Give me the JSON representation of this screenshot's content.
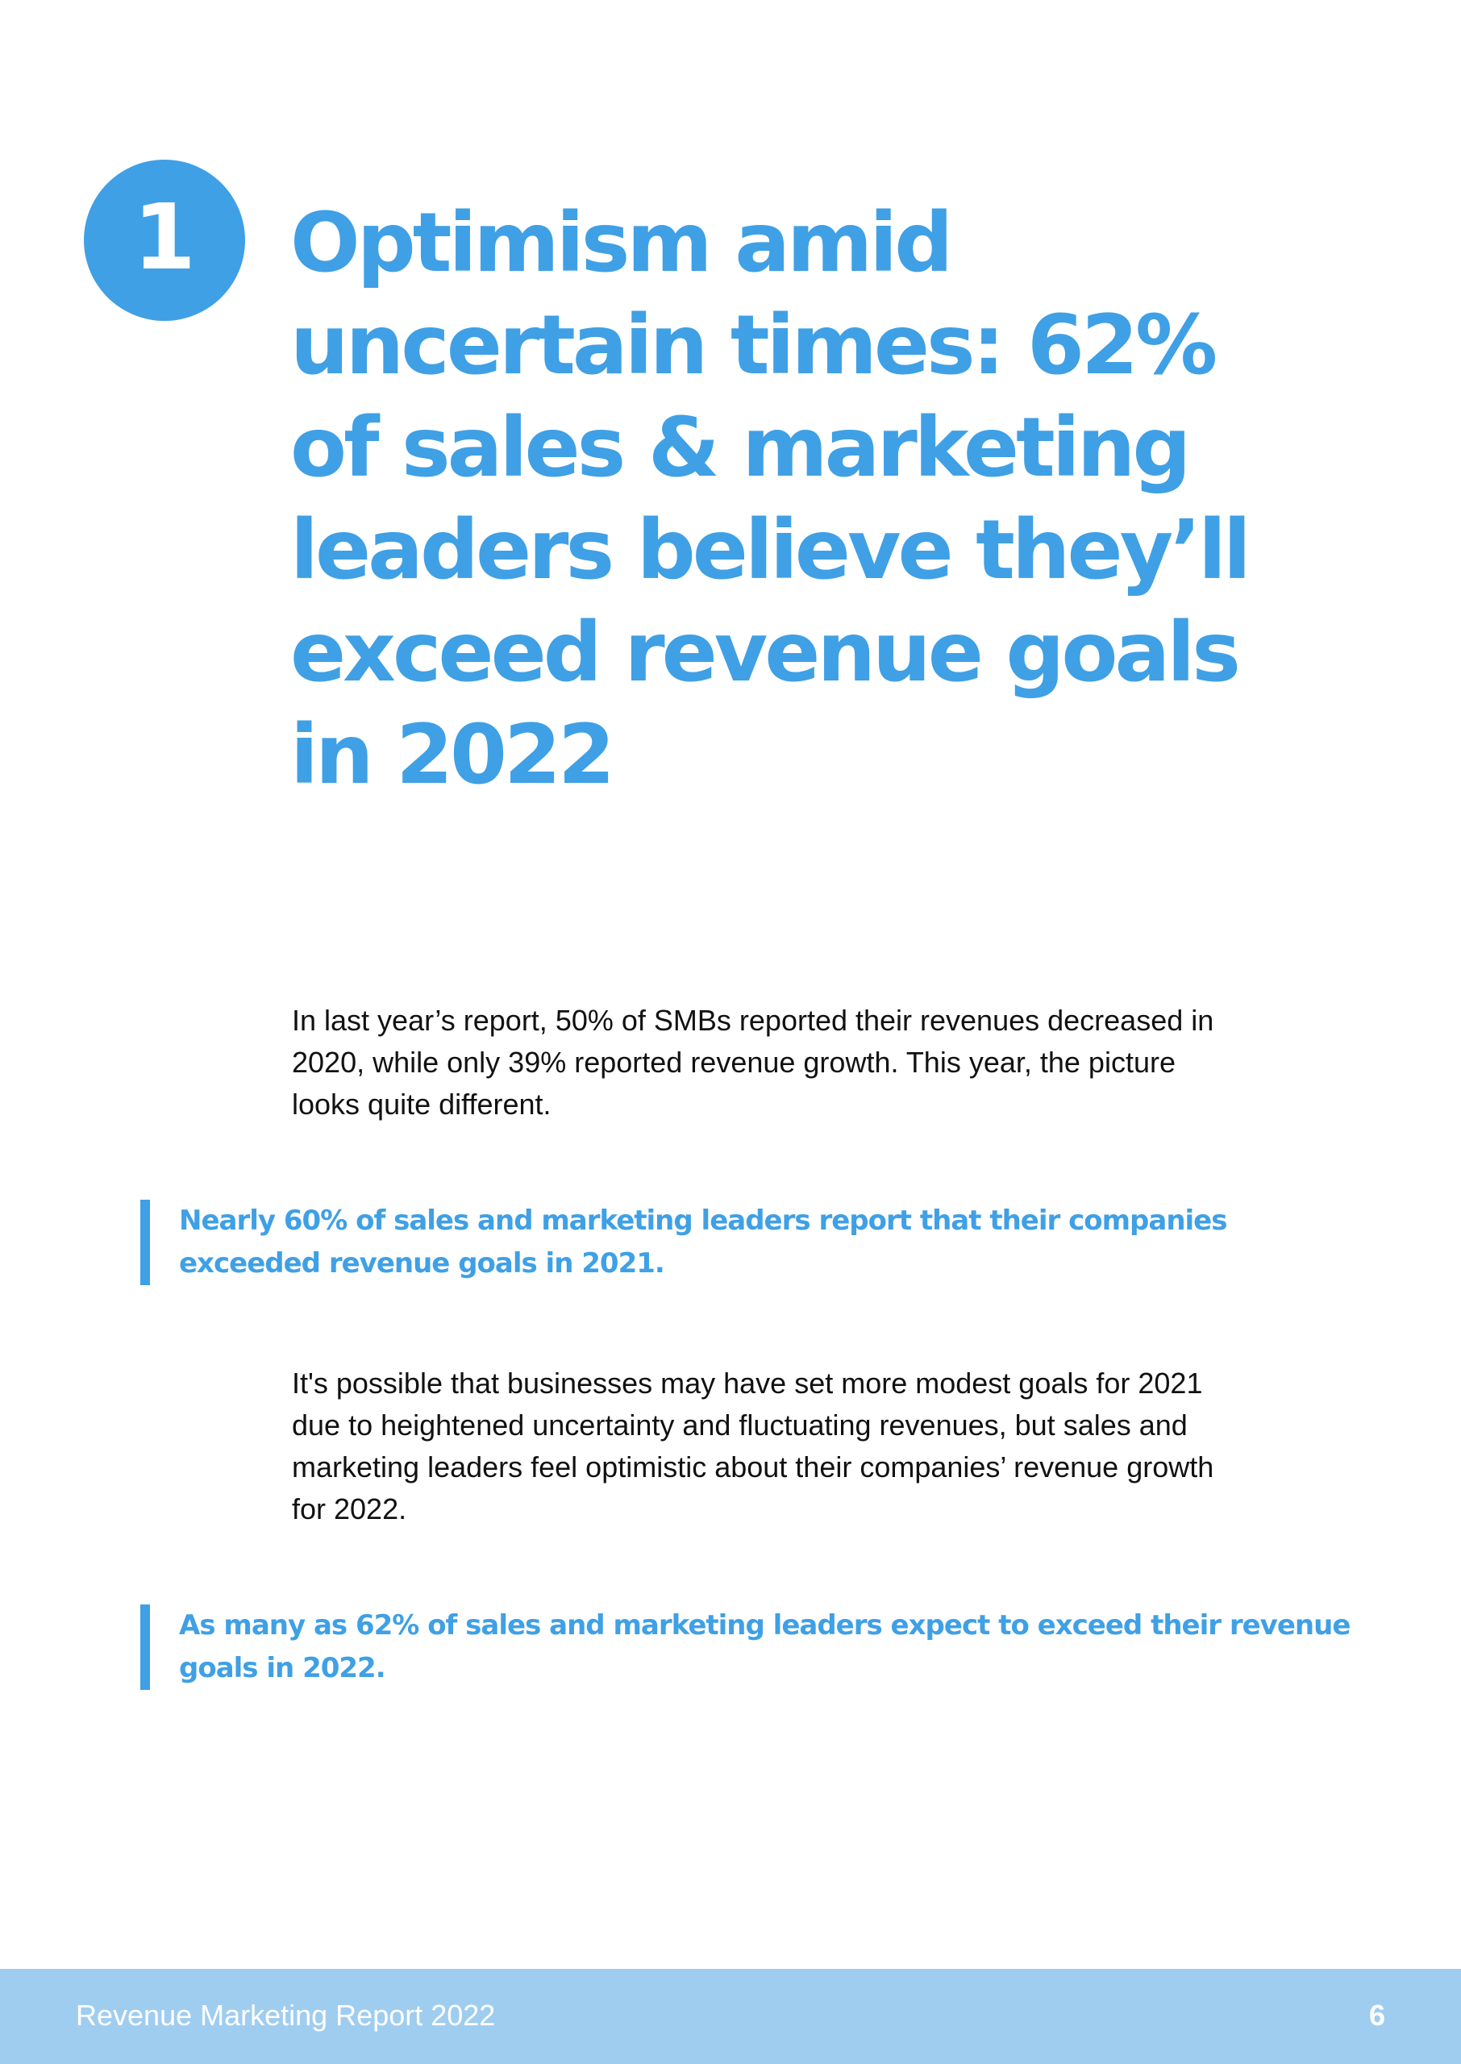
{
  "section": {
    "number": "1",
    "title": "Optimism amid uncertain times: 62% of sales & marketing leaders believe they’ll exceed revenue goals in 2022"
  },
  "paragraphs": {
    "intro": "In last year’s report, 50% of SMBs reported their revenues decreased in 2020, while only 39% reported revenue growth. This year, the picture looks quite different.",
    "middle": "It's possible that businesses may have set more modest goals for 2021 due to heightened uncertainty and fluctuating revenues, but sales and marketing leaders feel optimistic about their companies’ revenue growth for 2022."
  },
  "callouts": [
    "Nearly 60% of sales and marketing leaders report that their companies exceeded revenue goals in 2021.",
    "As many as 62% of sales and marketing leaders expect to exceed their revenue goals in 2022."
  ],
  "footer": {
    "title": "Revenue Marketing Report 2022",
    "page_number": "6"
  },
  "colors": {
    "accent": "#3fa0e5",
    "footer_background": "#9fcdf0",
    "body_text": "#111111"
  }
}
